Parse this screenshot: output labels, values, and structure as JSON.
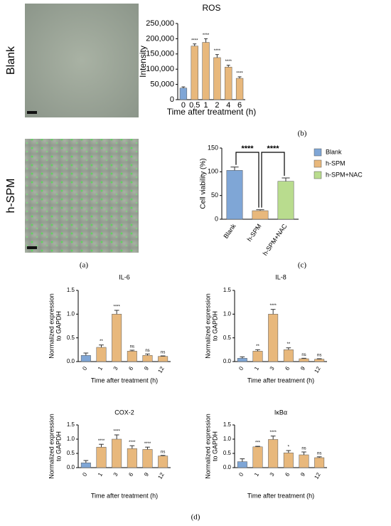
{
  "image_labels": [
    "Blank",
    "h-SPM"
  ],
  "panel_labels": [
    "(a)",
    "(b)",
    "(c)",
    "(d)"
  ],
  "chart_data": [
    {
      "type": "bar",
      "title": "ROS",
      "xlabel": "Time after treatment (h)",
      "ylabel": "Intensity",
      "categories": [
        "0",
        "0.5",
        "1",
        "2",
        "4",
        "6"
      ],
      "values": [
        38000,
        176000,
        188000,
        138000,
        107000,
        70000
      ],
      "errors": [
        4000,
        7000,
        12000,
        10000,
        6000,
        5000
      ],
      "significance": [
        null,
        "****",
        "****",
        "****",
        "****",
        "****"
      ],
      "colors": [
        "#7fa6d6",
        "#e8b87c",
        "#e8b87c",
        "#e8b87c",
        "#e8b87c",
        "#e8b87c"
      ],
      "ylim": [
        0,
        250000
      ],
      "yticks": [
        0,
        {
          "value": 50000,
          "label": "50,000"
        },
        {
          "value": 100000,
          "label": "100,000"
        },
        {
          "value": 150000,
          "label": "150,000"
        },
        {
          "value": 200000,
          "label": "200,000"
        },
        {
          "value": 250000,
          "label": "250,000"
        }
      ]
    },
    {
      "type": "bar",
      "ylabel": "Cell viability (%)",
      "categories": [
        "Blank",
        "h-SPM",
        "h-SPM+NAC"
      ],
      "values": [
        103,
        18,
        80
      ],
      "errors": [
        7,
        2,
        7
      ],
      "colors": [
        "#7fa6d6",
        "#e8b87c",
        "#b9dc8e"
      ],
      "annotations": [
        "****",
        "****"
      ],
      "legend": "right",
      "ylim": [
        0,
        150
      ],
      "yticks": [
        0,
        50,
        100,
        150
      ]
    },
    {
      "type": "bar",
      "title": "IL-6",
      "xlabel": "Time after treatment (h)",
      "ylabel": [
        "Normalized expression",
        "to GAPDH"
      ],
      "categories": [
        "0",
        "1",
        "3",
        "6",
        "9",
        "12"
      ],
      "values": [
        0.13,
        0.3,
        1.0,
        0.22,
        0.13,
        0.11
      ],
      "errors": [
        0.05,
        0.05,
        0.08,
        0.02,
        0.03,
        0.01
      ],
      "significance": [
        null,
        "**",
        "****",
        "ns",
        "ns",
        "ns"
      ],
      "colors": [
        "#7fa6d6",
        "#e8b87c",
        "#e8b87c",
        "#e8b87c",
        "#e8b87c",
        "#e8b87c"
      ],
      "ylim": [
        0,
        1.5
      ],
      "yticks": [
        {
          "value": 0,
          "label": "0.0"
        },
        0.5,
        {
          "value": 1,
          "label": "1.0"
        },
        1.5
      ]
    },
    {
      "type": "bar",
      "title": "IL-8",
      "xlabel": "Time after treatment (h)",
      "ylabel": [
        "Normalized expression",
        "to GAPDH"
      ],
      "categories": [
        "0",
        "1",
        "3",
        "6",
        "9",
        "12"
      ],
      "values": [
        0.07,
        0.22,
        1.0,
        0.25,
        0.06,
        0.05
      ],
      "errors": [
        0.03,
        0.03,
        0.1,
        0.04,
        0.01,
        0.01
      ],
      "significance": [
        null,
        "**",
        "****",
        "**",
        "ns",
        "ns"
      ],
      "colors": [
        "#7fa6d6",
        "#e8b87c",
        "#e8b87c",
        "#e8b87c",
        "#e8b87c",
        "#e8b87c"
      ],
      "ylim": [
        0,
        1.5
      ],
      "yticks": [
        {
          "value": 0,
          "label": "0.0"
        },
        0.5,
        {
          "value": 1,
          "label": "1.0"
        },
        1.5
      ]
    },
    {
      "type": "bar",
      "title": "COX-2",
      "xlabel": "Time after treatment (h)",
      "ylabel": [
        "Normalized expression",
        "to GAPDH"
      ],
      "categories": [
        "0",
        "1",
        "3",
        "6",
        "9",
        "12"
      ],
      "values": [
        0.17,
        0.72,
        1.0,
        0.67,
        0.64,
        0.41
      ],
      "errors": [
        0.08,
        0.1,
        0.15,
        0.1,
        0.08,
        0.02
      ],
      "significance": [
        null,
        "****",
        "****",
        "****",
        "****",
        "ns"
      ],
      "colors": [
        "#7fa6d6",
        "#e8b87c",
        "#e8b87c",
        "#e8b87c",
        "#e8b87c",
        "#e8b87c"
      ],
      "ylim": [
        0,
        1.5
      ],
      "yticks": [
        {
          "value": 0,
          "label": "0.0"
        },
        0.5,
        {
          "value": 1,
          "label": "1.0"
        },
        1.5
      ]
    },
    {
      "type": "bar",
      "title": "IκBα",
      "xlabel": "Time after treatment (h)",
      "ylabel": [
        "Normalized expression",
        "to GAPDH"
      ],
      "categories": [
        "0",
        "1",
        "3",
        "6",
        "9",
        "12"
      ],
      "values": [
        0.21,
        0.73,
        0.99,
        0.52,
        0.45,
        0.35
      ],
      "errors": [
        0.1,
        0.02,
        0.12,
        0.08,
        0.1,
        0.03
      ],
      "significance": [
        null,
        "***",
        "****",
        "*",
        "ns",
        "ns"
      ],
      "colors": [
        "#7fa6d6",
        "#e8b87c",
        "#e8b87c",
        "#e8b87c",
        "#e8b87c",
        "#e8b87c"
      ],
      "ylim": [
        0,
        1.5
      ],
      "yticks": [
        {
          "value": 0,
          "label": "0.0"
        },
        0.5,
        {
          "value": 1,
          "label": "1.0"
        },
        1.5
      ]
    }
  ]
}
